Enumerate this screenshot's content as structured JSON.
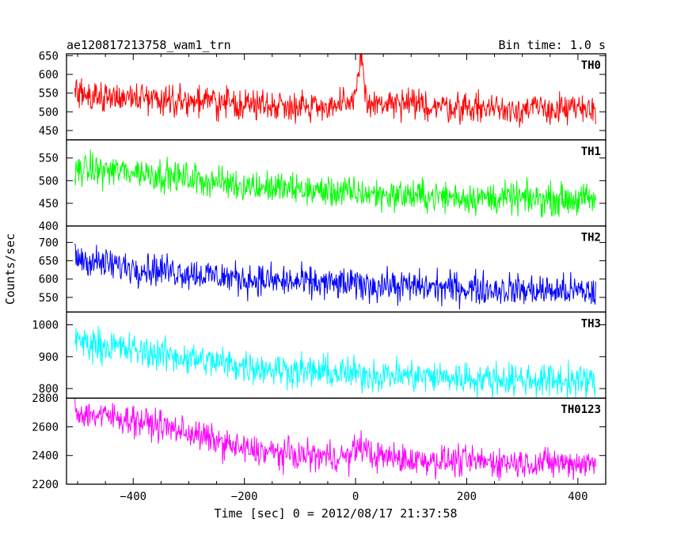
{
  "header": {
    "left": "ae120817213758_wam1_trn",
    "right": "Bin time: 1.0 s"
  },
  "x_axis": {
    "label": "Time [sec] 0 = 2012/08/17 21:37:58",
    "range": [
      -520,
      450
    ],
    "ticks": [
      -400,
      -200,
      0,
      200,
      400
    ],
    "tick_labels": [
      "−400",
      "−200",
      "0",
      "200",
      "400"
    ]
  },
  "y_axis": {
    "label": "Counts/sec"
  },
  "chart_data": {
    "type": "line",
    "title": "ae120817213758_wam1_trn",
    "xlabel": "Time [sec] 0 = 2012/08/17 21:37:58",
    "ylabel": "Counts/sec",
    "bin_time_s": 1.0,
    "x_range": [
      -505,
      432
    ],
    "series": [
      {
        "name": "TH0",
        "color": "#ff0000",
        "ylim": [
          425,
          655
        ],
        "yticks": [
          450,
          500,
          550,
          600,
          650
        ],
        "trend": [
          [
            -505,
            545
          ],
          [
            -400,
            540
          ],
          [
            -200,
            520
          ],
          [
            -5,
            515
          ],
          [
            0,
            560
          ],
          [
            5,
            610
          ],
          [
            10,
            650
          ],
          [
            15,
            600
          ],
          [
            20,
            520
          ],
          [
            100,
            518
          ],
          [
            200,
            512
          ],
          [
            300,
            508
          ],
          [
            432,
            505
          ]
        ],
        "noise_amplitude": 35
      },
      {
        "name": "TH1",
        "color": "#00ff00",
        "ylim": [
          400,
          590
        ],
        "yticks": [
          400,
          450,
          500,
          550
        ],
        "trend": [
          [
            -505,
            525
          ],
          [
            -400,
            520
          ],
          [
            -300,
            505
          ],
          [
            -200,
            490
          ],
          [
            -100,
            480
          ],
          [
            0,
            472
          ],
          [
            100,
            467
          ],
          [
            200,
            463
          ],
          [
            300,
            460
          ],
          [
            432,
            458
          ]
        ],
        "noise_amplitude": 30
      },
      {
        "name": "TH2",
        "color": "#0000ff",
        "ylim": [
          510,
          745
        ],
        "yticks": [
          550,
          600,
          650,
          700
        ],
        "trend": [
          [
            -505,
            660
          ],
          [
            -450,
            640
          ],
          [
            -350,
            625
          ],
          [
            -200,
            600
          ],
          [
            -100,
            590
          ],
          [
            0,
            585
          ],
          [
            100,
            580
          ],
          [
            200,
            575
          ],
          [
            300,
            570
          ],
          [
            432,
            565
          ]
        ],
        "noise_amplitude": 38
      },
      {
        "name": "TH3",
        "color": "#00ffff",
        "ylim": [
          770,
          1040
        ],
        "yticks": [
          800,
          900,
          1000
        ],
        "trend": [
          [
            -505,
            950
          ],
          [
            -400,
            920
          ],
          [
            -300,
            895
          ],
          [
            -200,
            870
          ],
          [
            -100,
            855
          ],
          [
            0,
            845
          ],
          [
            100,
            840
          ],
          [
            200,
            832
          ],
          [
            300,
            828
          ],
          [
            432,
            822
          ]
        ],
        "noise_amplitude": 45
      },
      {
        "name": "TH0123",
        "color": "#ff00ff",
        "ylim": [
          2200,
          2800
        ],
        "yticks": [
          2200,
          2400,
          2600,
          2800
        ],
        "trend": [
          [
            -505,
            2700
          ],
          [
            -400,
            2650
          ],
          [
            -300,
            2560
          ],
          [
            -200,
            2440
          ],
          [
            -100,
            2400
          ],
          [
            -10,
            2390
          ],
          [
            0,
            2450
          ],
          [
            10,
            2470
          ],
          [
            30,
            2400
          ],
          [
            100,
            2370
          ],
          [
            200,
            2360
          ],
          [
            300,
            2350
          ],
          [
            432,
            2345
          ]
        ],
        "noise_amplitude": 90
      }
    ]
  }
}
